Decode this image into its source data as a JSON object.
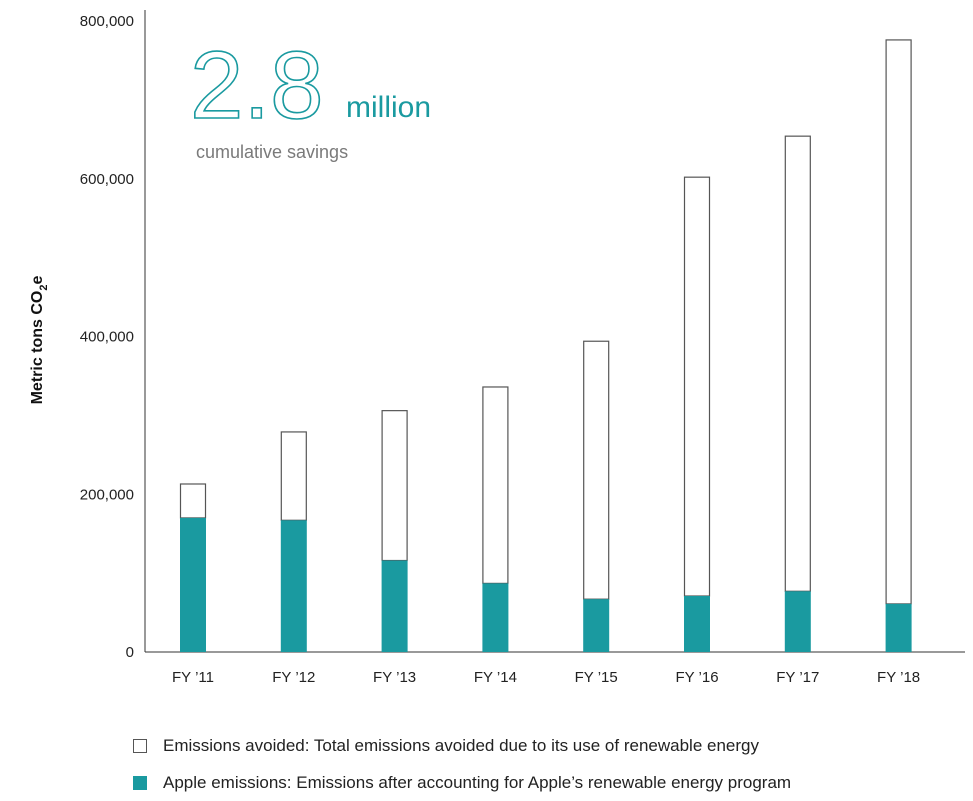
{
  "callout": {
    "number": "2.8",
    "unit": "million",
    "subtitle": "cumulative savings"
  },
  "legend": {
    "avoided": "Emissions avoided: Total emissions avoided due to its use of renewable energy",
    "apple": "Apple emissions: Emissions after accounting for Apple’s renewable energy program"
  },
  "colors": {
    "apple": "#1a9aa0",
    "avoided_fill": "#ffffff",
    "avoided_stroke": "#555555",
    "axis": "#333333"
  },
  "chart_data": {
    "type": "bar",
    "stacked": true,
    "categories": [
      "FY ’11",
      "FY ’12",
      "FY ’13",
      "FY ’14",
      "FY ’15",
      "FY ’16",
      "FY ’17",
      "FY ’18"
    ],
    "series": [
      {
        "name": "Apple emissions",
        "values": [
          170000,
          167000,
          116000,
          87000,
          67000,
          71000,
          77000,
          61000
        ]
      },
      {
        "name": "Emissions avoided",
        "values": [
          43000,
          112000,
          190000,
          249000,
          327000,
          531000,
          577000,
          715000
        ]
      }
    ],
    "totals": [
      213000,
      279000,
      306000,
      336000,
      394000,
      602000,
      654000,
      776000
    ],
    "ylabel": "Metric tons CO₂e",
    "xlabel": "",
    "ylim": [
      0,
      800000
    ],
    "yticks": [
      0,
      200000,
      400000,
      600000,
      800000
    ],
    "ytick_labels": [
      "0",
      "200,000",
      "400,000",
      "600,000",
      "800,000"
    ],
    "grid": false,
    "legend_position": "bottom"
  }
}
